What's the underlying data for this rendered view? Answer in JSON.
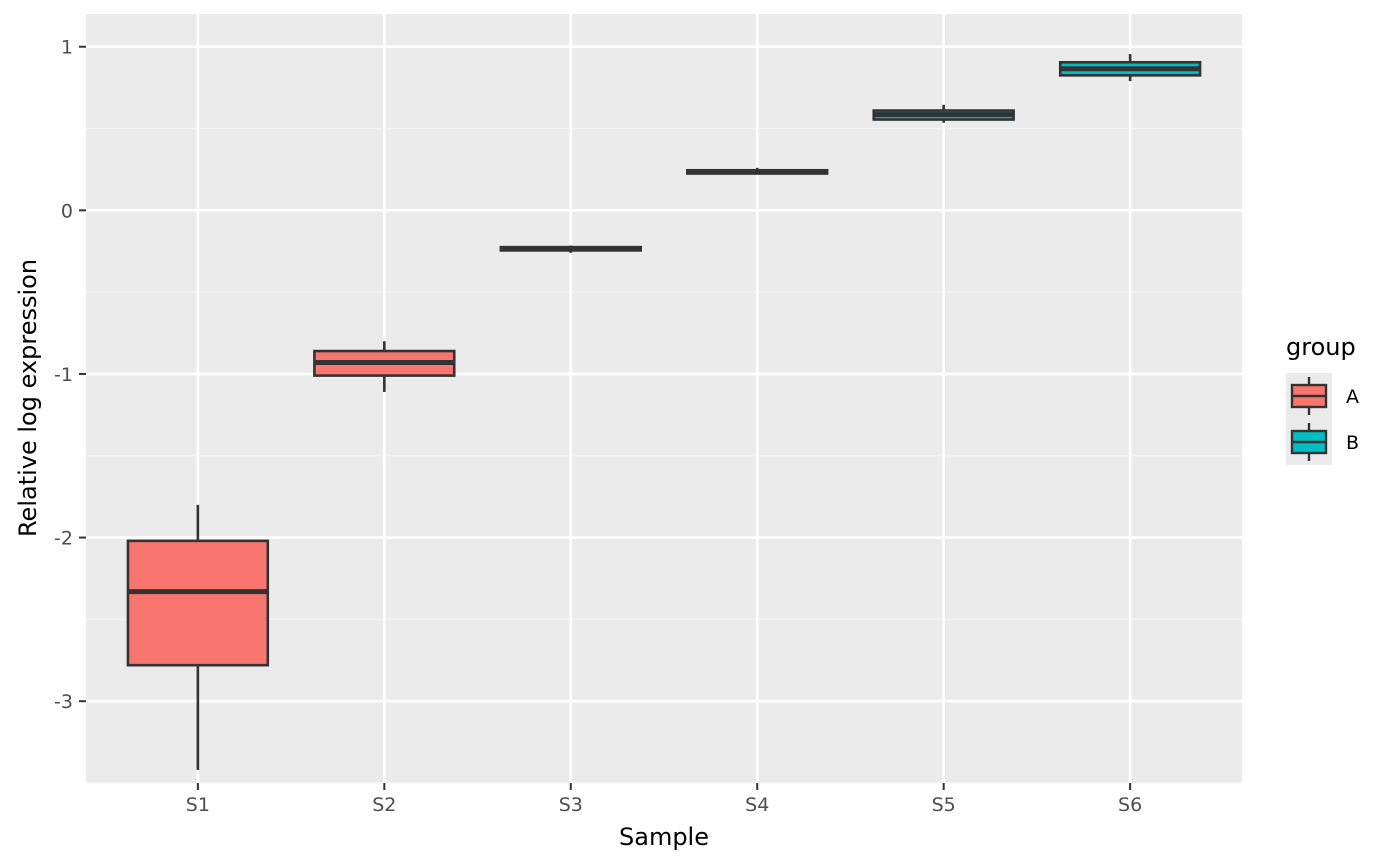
{
  "chart_data": {
    "type": "boxplot",
    "xlabel": "Sample",
    "ylabel": "Relative log expression",
    "categories": [
      "S1",
      "S2",
      "S3",
      "S4",
      "S5",
      "S6"
    ],
    "ylim": [
      -3.5,
      1.2
    ],
    "yticks": [
      1,
      0,
      -1,
      -2,
      -3
    ],
    "ytick_labels": [
      "1",
      "0",
      "-1",
      "-2",
      "-3"
    ],
    "grid": true,
    "legend": {
      "title": "group",
      "position": "right",
      "entries": [
        {
          "label": "A",
          "color": "#F8766D"
        },
        {
          "label": "B",
          "color": "#00BFC4"
        }
      ]
    },
    "boxes": [
      {
        "sample": "S1",
        "group": "A",
        "whisker_low": -3.42,
        "q1": -2.78,
        "median": -2.33,
        "q3": -2.02,
        "whisker_high": -1.8
      },
      {
        "sample": "S2",
        "group": "A",
        "whisker_low": -1.11,
        "q1": -1.01,
        "median": -0.93,
        "q3": -0.86,
        "whisker_high": -0.8
      },
      {
        "sample": "S3",
        "group": "A",
        "whisker_low": -0.26,
        "q1": -0.245,
        "median": -0.235,
        "q3": -0.225,
        "whisker_high": -0.215
      },
      {
        "sample": "S4",
        "group": "A",
        "whisker_low": 0.22,
        "q1": 0.225,
        "median": 0.235,
        "q3": 0.245,
        "whisker_high": 0.26
      },
      {
        "sample": "S5",
        "group": "B",
        "whisker_low": 0.535,
        "q1": 0.555,
        "median": 0.585,
        "q3": 0.61,
        "whisker_high": 0.645
      },
      {
        "sample": "S6",
        "group": "B",
        "whisker_low": 0.79,
        "q1": 0.825,
        "median": 0.865,
        "q3": 0.905,
        "whisker_high": 0.955
      }
    ],
    "colors": {
      "panel_background": "#EBEBEB",
      "grid_major": "#FFFFFF",
      "grid_minor": "#F5F5F5",
      "box_outline": "#333333",
      "tick_label": "#4D4D4D"
    }
  }
}
